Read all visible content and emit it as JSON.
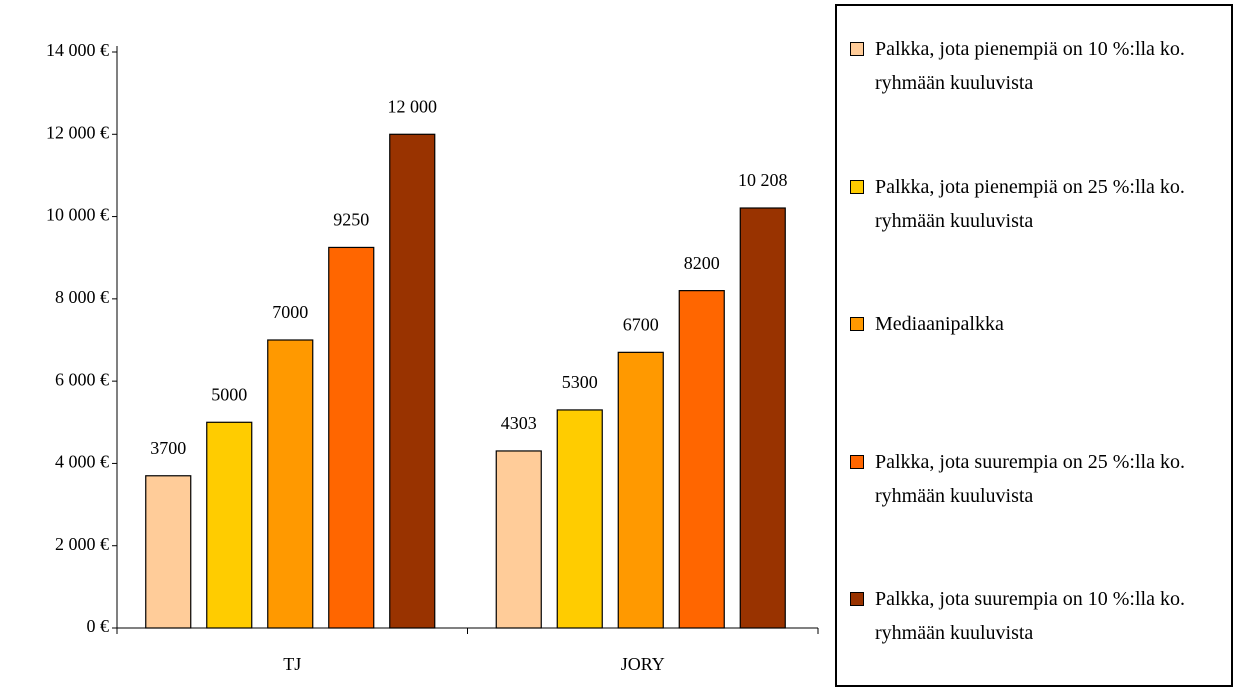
{
  "chart_data": {
    "type": "bar",
    "categories": [
      "TJ",
      "JORY"
    ],
    "series": [
      {
        "name": "Palkka, jota pienempiä on 10 %:lla ko. ryhmään kuuluvista",
        "color": "#FFCC99",
        "values": [
          3700,
          4303
        ],
        "value_labels": [
          "3700",
          "4303"
        ]
      },
      {
        "name": "Palkka, jota pienempiä on 25 %:lla ko. ryhmään kuuluvista",
        "color": "#FFCC00",
        "values": [
          5000,
          5300
        ],
        "value_labels": [
          "5000",
          "5300"
        ]
      },
      {
        "name": "Mediaanipalkka",
        "color": "#FF9900",
        "values": [
          7000,
          6700
        ],
        "value_labels": [
          "7000",
          "6700"
        ]
      },
      {
        "name": "Palkka, jota suurempia on 25 %:lla ko. ryhmään kuuluvista",
        "color": "#FF6600",
        "values": [
          9250,
          8200
        ],
        "value_labels": [
          "9250",
          "8200"
        ]
      },
      {
        "name": "Palkka, jota suurempia on 10 %:lla ko. ryhmään kuuluvista",
        "color": "#993300",
        "values": [
          12000,
          10208
        ],
        "value_labels": [
          "12 000",
          "10 208"
        ]
      }
    ],
    "ylim": [
      0,
      14000
    ],
    "yticks": [
      {
        "value": 0,
        "label": "0 €"
      },
      {
        "value": 2000,
        "label": "2 000 €"
      },
      {
        "value": 4000,
        "label": "4 000 €"
      },
      {
        "value": 6000,
        "label": "6 000 €"
      },
      {
        "value": 8000,
        "label": "8 000 €"
      },
      {
        "value": 10000,
        "label": "10 000 €"
      },
      {
        "value": 12000,
        "label": "12 000 €"
      },
      {
        "value": 14000,
        "label": "14 000 €"
      }
    ],
    "grid": false,
    "legend": "right"
  }
}
